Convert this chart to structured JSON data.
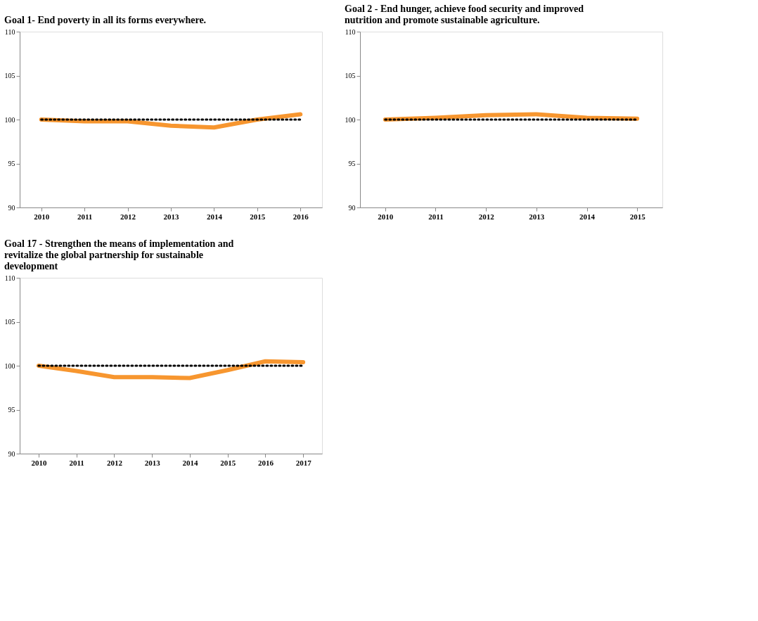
{
  "chart_data": [
    {
      "type": "line",
      "title": "Goal 1- End poverty in all its forms everywhere.",
      "categories": [
        "2010",
        "2011",
        "2012",
        "2013",
        "2014",
        "2015",
        "2016"
      ],
      "ylim": [
        90,
        110
      ],
      "yticks": [
        90,
        95,
        100,
        105,
        110
      ],
      "grid": false,
      "marker": "none",
      "series": [
        {
          "color": "#f7962f",
          "line_style": "solid",
          "values": [
            100,
            99.8,
            99.8,
            99.3,
            99.1,
            100.0,
            100.6
          ]
        },
        {
          "color": "#000000",
          "line_style": "dotted",
          "values": [
            100,
            100,
            100,
            100,
            100,
            100,
            100
          ]
        }
      ]
    },
    {
      "type": "line",
      "title": "Goal 2 - End hunger, achieve food security and improved nutrition and promote sustainable agriculture.",
      "categories": [
        "2010",
        "2011",
        "2012",
        "2013",
        "2014",
        "2015"
      ],
      "ylim": [
        90,
        110
      ],
      "yticks": [
        90,
        95,
        100,
        105,
        110
      ],
      "grid": false,
      "marker": "none",
      "series": [
        {
          "color": "#f7962f",
          "line_style": "solid",
          "values": [
            100,
            100.2,
            100.5,
            100.6,
            100.2,
            100.1
          ]
        },
        {
          "color": "#000000",
          "line_style": "dotted",
          "values": [
            100,
            100,
            100,
            100,
            100,
            100
          ]
        }
      ]
    },
    {
      "type": "line",
      "title": "Goal 17 - Strengthen the means of implementation and revitalize the global partnership for sustainable development",
      "categories": [
        "2010",
        "2011",
        "2012",
        "2013",
        "2014",
        "2015",
        "2016",
        "2017"
      ],
      "ylim": [
        90,
        110
      ],
      "yticks": [
        90,
        95,
        100,
        105,
        110
      ],
      "grid": false,
      "marker": "none",
      "series": [
        {
          "color": "#f7962f",
          "line_style": "solid",
          "values": [
            100,
            99.4,
            98.7,
            98.7,
            98.6,
            99.5,
            100.5,
            100.4
          ]
        },
        {
          "color": "#000000",
          "line_style": "dotted",
          "values": [
            100,
            100,
            100,
            100,
            100,
            100,
            100,
            100
          ]
        }
      ]
    }
  ]
}
